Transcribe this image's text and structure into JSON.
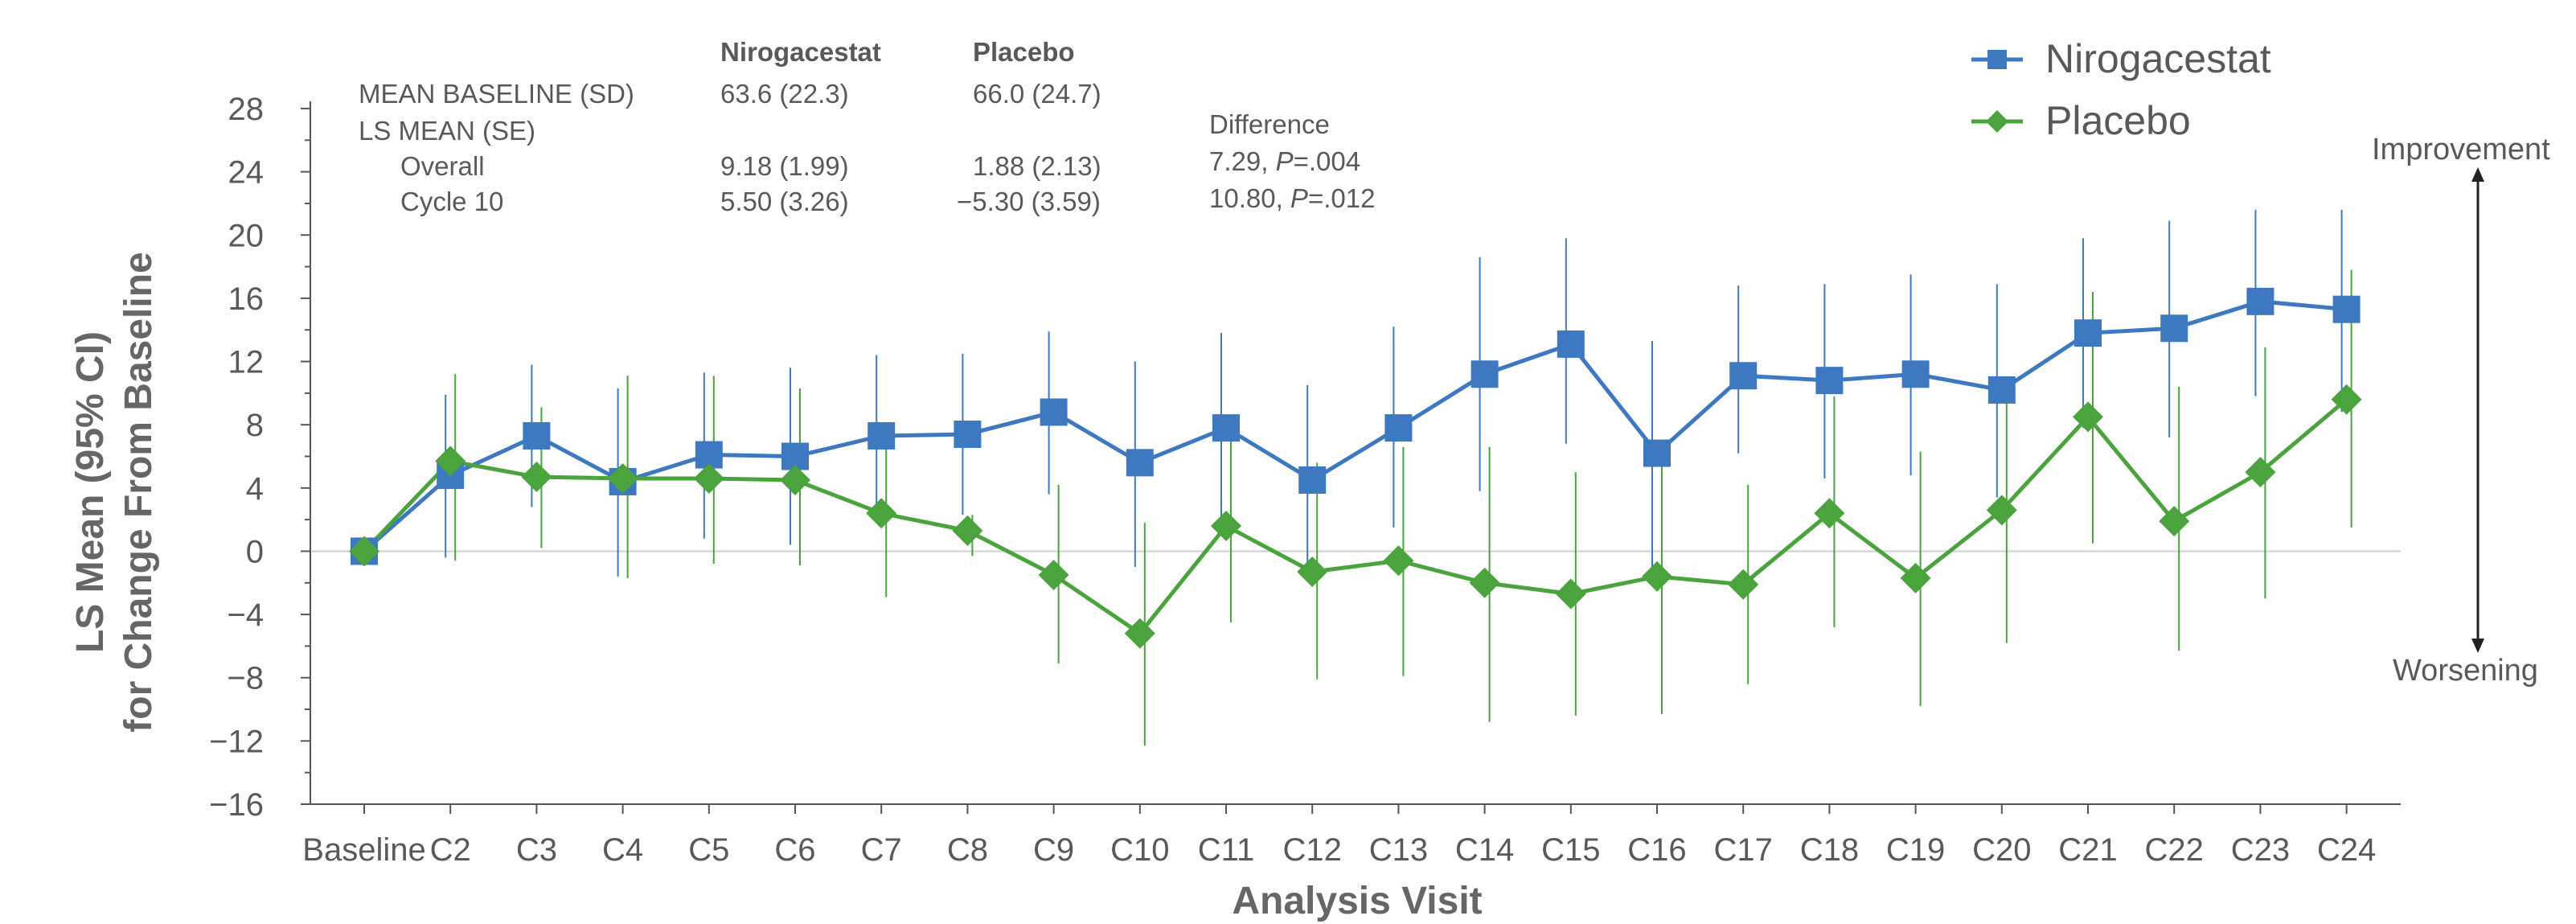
{
  "chart_data": {
    "type": "line",
    "xlabel": "Analysis Visit",
    "ylabel_line1": "LS Mean (95% CI)",
    "ylabel_line2": "for Change From Baseline",
    "ylim": [
      -16,
      28
    ],
    "yticks": [
      -16,
      -12,
      -8,
      -4,
      0,
      4,
      8,
      12,
      16,
      20,
      24,
      28
    ],
    "yticks_labels": [
      "−16",
      "−12",
      "−8",
      "−4",
      "0",
      "4",
      "8",
      "12",
      "16",
      "20",
      "24",
      "28"
    ],
    "categories": [
      "Baseline",
      "C2",
      "C3",
      "C4",
      "C5",
      "C6",
      "C7",
      "C8",
      "C9",
      "C10",
      "C11",
      "C12",
      "C13",
      "C14",
      "C15",
      "C16",
      "C17",
      "C18",
      "C19",
      "C20",
      "C21",
      "C22",
      "C23",
      "C24"
    ],
    "series": [
      {
        "name": "Nirogacestat",
        "color": "#3d78c1",
        "marker": "square",
        "values": [
          0,
          4.8,
          7.3,
          4.4,
          6.1,
          6.0,
          7.3,
          7.4,
          8.8,
          5.6,
          7.8,
          4.5,
          7.8,
          11.2,
          13.1,
          6.2,
          11.1,
          10.8,
          11.2,
          10.2,
          13.8,
          14.1,
          15.8,
          15.3
        ],
        "ci_low": [
          0,
          -0.4,
          2.8,
          -1.6,
          0.8,
          0.4,
          2.2,
          2.3,
          3.6,
          -1.0,
          1.8,
          -1.6,
          1.5,
          3.8,
          6.8,
          -1.2,
          6.2,
          4.6,
          4.8,
          3.4,
          7.8,
          7.2,
          9.8,
          8.8
        ],
        "ci_high": [
          0,
          9.9,
          11.8,
          10.3,
          11.3,
          11.6,
          12.4,
          12.5,
          13.9,
          12.0,
          13.8,
          10.5,
          14.2,
          18.6,
          19.8,
          13.3,
          16.8,
          16.9,
          17.5,
          16.9,
          19.8,
          20.9,
          21.6,
          21.6
        ]
      },
      {
        "name": "Placebo",
        "color": "#4aa33c",
        "marker": "diamond",
        "values": [
          0,
          5.7,
          4.7,
          4.6,
          4.6,
          4.5,
          2.4,
          1.3,
          -1.5,
          -5.2,
          1.6,
          -1.3,
          -0.6,
          -2.0,
          -2.7,
          -1.6,
          -2.1,
          2.4,
          -1.7,
          2.6,
          8.5,
          1.9,
          5.0,
          9.6
        ],
        "ci_low": [
          0,
          -0.6,
          0.2,
          -1.7,
          -0.8,
          -0.9,
          -2.9,
          -0.3,
          -7.1,
          -12.3,
          -4.5,
          -8.1,
          -7.9,
          -10.8,
          -10.4,
          -10.3,
          -8.4,
          -4.8,
          -9.8,
          -5.8,
          0.5,
          -6.3,
          -3.0,
          1.5
        ],
        "ci_high": [
          0,
          11.2,
          9.1,
          11.1,
          11.1,
          10.3,
          6.7,
          2.3,
          4.2,
          1.8,
          7.6,
          5.6,
          6.6,
          6.6,
          5.0,
          6.8,
          4.2,
          9.8,
          6.3,
          9.6,
          16.4,
          10.4,
          12.9,
          17.8
        ]
      }
    ],
    "legend": [
      "Nirogacestat",
      "Placebo"
    ],
    "legend_position": "top-right",
    "stats_table": {
      "col_headers": [
        "Nirogacestat",
        "Placebo"
      ],
      "rows": [
        {
          "label": "MEAN BASELINE (SD)",
          "niro": "63.6 (22.3)",
          "placebo": "66.0 (24.7)"
        },
        {
          "label": "LS MEAN (SE)",
          "niro": "",
          "placebo": ""
        },
        {
          "label": "Overall",
          "niro": "9.18 (1.99)",
          "placebo": "1.88 (2.13)"
        },
        {
          "label": "Cycle 10",
          "niro": "5.50 (3.26)",
          "placebo": "−5.30 (3.59)"
        }
      ],
      "difference_header": "Difference",
      "difference_rows": [
        {
          "value": "7.29, ",
          "p_label": "P",
          "p_value": "=.004"
        },
        {
          "value": "10.80, ",
          "p_label": "P",
          "p_value": "=.012"
        }
      ]
    },
    "direction_labels": {
      "up": "Improvement",
      "down": "Worsening"
    }
  }
}
